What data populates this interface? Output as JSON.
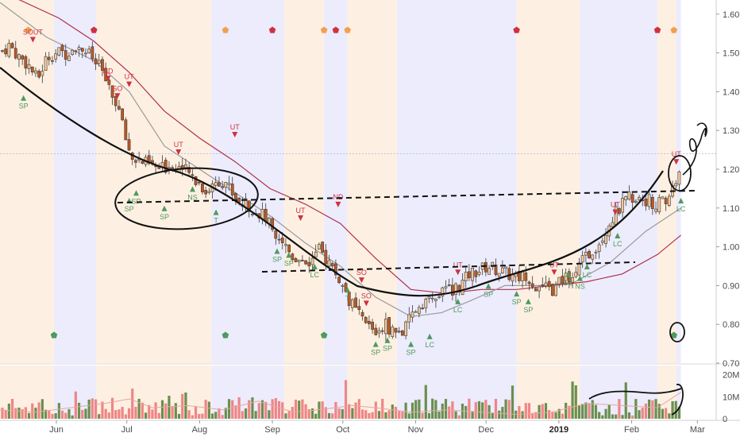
{
  "colors": {
    "up": "#6a8f4e",
    "down": "#f08585",
    "candle_up_fill": "#f5c89a",
    "candle_down_fill": "#c05820",
    "band_blue": "#ececfd",
    "band_orange": "#fdf0e2",
    "ma_slow": "#b0304a",
    "ma_fast": "#9a9a9a",
    "signal_green": "#4e9a5e",
    "signal_red": "#d03040",
    "signal_orange": "#f0a050",
    "drawing": "#111111"
  },
  "chart_data": {
    "type": "candlestick",
    "price_axis": {
      "ylim": [
        0.7,
        1.62
      ],
      "ticks": [
        "0.70",
        "0.80",
        "0.90",
        "1.00",
        "1.10",
        "1.20",
        "1.30",
        "1.40",
        "1.50",
        "1.60"
      ]
    },
    "volume_axis": {
      "ylim": [
        0,
        22
      ],
      "ticks": [
        "0",
        "10M",
        "20M"
      ]
    },
    "x_ticks": [
      {
        "label": "Jun",
        "day": 14,
        "bold": false
      },
      {
        "label": "Jul",
        "day": 44,
        "bold": false
      },
      {
        "label": "Aug",
        "day": 75,
        "bold": false
      },
      {
        "label": "Sep",
        "day": 106,
        "bold": false
      },
      {
        "label": "Oct",
        "day": 136,
        "bold": false
      },
      {
        "label": "Nov",
        "day": 167,
        "bold": false
      },
      {
        "label": "Dec",
        "day": 197,
        "bold": false
      },
      {
        "label": "2019",
        "day": 228,
        "bold": true
      },
      {
        "label": "Feb",
        "day": 259,
        "bold": false
      },
      {
        "label": "Mar",
        "day": 287,
        "bold": false
      }
    ],
    "x_domain_days": [
      -10,
      295
    ],
    "bands": [
      {
        "from": -10,
        "to": 13,
        "color": "orange"
      },
      {
        "from": 13,
        "to": 31,
        "color": "blue"
      },
      {
        "from": 31,
        "to": 80,
        "color": "orange"
      },
      {
        "from": 80,
        "to": 111,
        "color": "blue"
      },
      {
        "from": 111,
        "to": 128,
        "color": "orange"
      },
      {
        "from": 128,
        "to": 138,
        "color": "blue"
      },
      {
        "from": 138,
        "to": 159,
        "color": "orange"
      },
      {
        "from": 159,
        "to": 210,
        "color": "blue"
      },
      {
        "from": 210,
        "to": 237,
        "color": "orange"
      },
      {
        "from": 237,
        "to": 270,
        "color": "blue"
      },
      {
        "from": 270,
        "to": 278,
        "color": "orange"
      },
      {
        "from": 278,
        "to": 280,
        "color": "blue"
      }
    ],
    "close_path": [
      [
        -10,
        1.5
      ],
      [
        -6,
        1.52
      ],
      [
        -2,
        1.49
      ],
      [
        2,
        1.47
      ],
      [
        6,
        1.43
      ],
      [
        10,
        1.49
      ],
      [
        14,
        1.5
      ],
      [
        18,
        1.5
      ],
      [
        22,
        1.52
      ],
      [
        26,
        1.51
      ],
      [
        30,
        1.48
      ],
      [
        34,
        1.45
      ],
      [
        37,
        1.39
      ],
      [
        40,
        1.37
      ],
      [
        43,
        1.29
      ],
      [
        46,
        1.23
      ],
      [
        50,
        1.22
      ],
      [
        54,
        1.21
      ],
      [
        58,
        1.2
      ],
      [
        62,
        1.21
      ],
      [
        66,
        1.21
      ],
      [
        70,
        1.19
      ],
      [
        74,
        1.17
      ],
      [
        78,
        1.14
      ],
      [
        82,
        1.17
      ],
      [
        86,
        1.17
      ],
      [
        90,
        1.13
      ],
      [
        94,
        1.11
      ],
      [
        98,
        1.1
      ],
      [
        102,
        1.08
      ],
      [
        106,
        1.05
      ],
      [
        110,
        1.02
      ],
      [
        114,
        0.98
      ],
      [
        118,
        0.97
      ],
      [
        122,
        0.96
      ],
      [
        126,
        0.99
      ],
      [
        130,
        0.96
      ],
      [
        134,
        0.92
      ],
      [
        138,
        0.87
      ],
      [
        142,
        0.83
      ],
      [
        146,
        0.8
      ],
      [
        150,
        0.78
      ],
      [
        154,
        0.8
      ],
      [
        158,
        0.78
      ],
      [
        162,
        0.78
      ],
      [
        166,
        0.83
      ],
      [
        170,
        0.86
      ],
      [
        174,
        0.86
      ],
      [
        178,
        0.88
      ],
      [
        182,
        0.89
      ],
      [
        186,
        0.9
      ],
      [
        190,
        0.93
      ],
      [
        194,
        0.94
      ],
      [
        198,
        0.95
      ],
      [
        202,
        0.94
      ],
      [
        206,
        0.93
      ],
      [
        210,
        0.92
      ],
      [
        214,
        0.93
      ],
      [
        218,
        0.9
      ],
      [
        222,
        0.89
      ],
      [
        226,
        0.89
      ],
      [
        230,
        0.92
      ],
      [
        234,
        0.93
      ],
      [
        238,
        0.96
      ],
      [
        242,
        0.99
      ],
      [
        246,
        1.02
      ],
      [
        250,
        1.07
      ],
      [
        254,
        1.1
      ],
      [
        258,
        1.13
      ],
      [
        262,
        1.13
      ],
      [
        266,
        1.12
      ],
      [
        270,
        1.11
      ],
      [
        274,
        1.12
      ],
      [
        277,
        1.16
      ],
      [
        280,
        1.19
      ]
    ],
    "ma_fast_path": [
      [
        -10,
        1.63
      ],
      [
        10,
        1.54
      ],
      [
        30,
        1.48
      ],
      [
        45,
        1.4
      ],
      [
        60,
        1.26
      ],
      [
        75,
        1.2
      ],
      [
        90,
        1.14
      ],
      [
        105,
        1.08
      ],
      [
        120,
        1.01
      ],
      [
        135,
        0.95
      ],
      [
        150,
        0.87
      ],
      [
        165,
        0.82
      ],
      [
        178,
        0.83
      ],
      [
        190,
        0.86
      ],
      [
        205,
        0.9
      ],
      [
        220,
        0.9
      ],
      [
        235,
        0.91
      ],
      [
        250,
        0.96
      ],
      [
        265,
        1.04
      ],
      [
        280,
        1.1
      ]
    ],
    "ma_slow_path": [
      [
        -10,
        1.66
      ],
      [
        15,
        1.59
      ],
      [
        30,
        1.53
      ],
      [
        45,
        1.45
      ],
      [
        60,
        1.35
      ],
      [
        75,
        1.28
      ],
      [
        90,
        1.22
      ],
      [
        105,
        1.15
      ],
      [
        120,
        1.11
      ],
      [
        135,
        1.06
      ],
      [
        150,
        0.97
      ],
      [
        165,
        0.89
      ],
      [
        180,
        0.88
      ],
      [
        195,
        0.89
      ],
      [
        210,
        0.89
      ],
      [
        225,
        0.9
      ],
      [
        240,
        0.91
      ],
      [
        255,
        0.93
      ],
      [
        270,
        0.98
      ],
      [
        280,
        1.03
      ]
    ],
    "volume_profile": [
      [
        -10,
        4
      ],
      [
        5,
        3
      ],
      [
        20,
        5
      ],
      [
        35,
        7
      ],
      [
        45,
        9
      ],
      [
        55,
        5
      ],
      [
        70,
        6
      ],
      [
        85,
        4
      ],
      [
        100,
        8
      ],
      [
        115,
        3
      ],
      [
        125,
        4
      ],
      [
        140,
        6
      ],
      [
        150,
        5
      ],
      [
        165,
        3
      ],
      [
        180,
        4
      ],
      [
        195,
        3
      ],
      [
        210,
        2
      ],
      [
        225,
        3
      ],
      [
        240,
        7
      ],
      [
        255,
        6
      ],
      [
        270,
        5
      ],
      [
        280,
        12
      ]
    ],
    "signals_green": [
      {
        "day": 0,
        "price": 1.385,
        "label": "SP"
      },
      {
        "day": 45,
        "price": 1.12,
        "label": "SP"
      },
      {
        "day": 48,
        "price": 1.14,
        "label": "SP"
      },
      {
        "day": 60,
        "price": 1.1,
        "label": "SP"
      },
      {
        "day": 72,
        "price": 1.15,
        "label": "NS"
      },
      {
        "day": 82,
        "price": 1.09,
        "label": "T"
      },
      {
        "day": 108,
        "price": 0.99,
        "label": "SP"
      },
      {
        "day": 113,
        "price": 0.98,
        "label": "SP"
      },
      {
        "day": 124,
        "price": 0.95,
        "label": "LC"
      },
      {
        "day": 138,
        "price": 0.89,
        "label": "T"
      },
      {
        "day": 150,
        "price": 0.75,
        "label": "SP"
      },
      {
        "day": 155,
        "price": 0.76,
        "label": "SP"
      },
      {
        "day": 165,
        "price": 0.75,
        "label": "SP"
      },
      {
        "day": 173,
        "price": 0.77,
        "label": "LC"
      },
      {
        "day": 185,
        "price": 0.86,
        "label": "LC"
      },
      {
        "day": 198,
        "price": 0.9,
        "label": "SP"
      },
      {
        "day": 210,
        "price": 0.88,
        "label": "SP"
      },
      {
        "day": 215,
        "price": 0.86,
        "label": "SP"
      },
      {
        "day": 232,
        "price": 0.93,
        "label": "LC"
      },
      {
        "day": 237,
        "price": 0.92,
        "label": "NS"
      },
      {
        "day": 240,
        "price": 0.95,
        "label": "LC"
      },
      {
        "day": 253,
        "price": 1.03,
        "label": "LC"
      },
      {
        "day": 280,
        "price": 1.12,
        "label": "LC"
      }
    ],
    "signals_red": [
      {
        "day": 4,
        "price": 1.535,
        "label": "SOUT"
      },
      {
        "day": 36,
        "price": 1.435,
        "label": "ND"
      },
      {
        "day": 40,
        "price": 1.39,
        "label": "SO"
      },
      {
        "day": 45,
        "price": 1.42,
        "label": "UT"
      },
      {
        "day": 66,
        "price": 1.245,
        "label": "UT"
      },
      {
        "day": 90,
        "price": 1.29,
        "label": "UT"
      },
      {
        "day": 118,
        "price": 1.075,
        "label": "UT"
      },
      {
        "day": 134,
        "price": 1.11,
        "label": "ND"
      },
      {
        "day": 144,
        "price": 0.915,
        "label": "SO"
      },
      {
        "day": 146,
        "price": 0.855,
        "label": "SO"
      },
      {
        "day": 185,
        "price": 0.935,
        "label": "UT"
      },
      {
        "day": 226,
        "price": 0.935,
        "label": "UT"
      },
      {
        "day": 252,
        "price": 1.09,
        "label": "UT"
      },
      {
        "day": 278,
        "price": 1.22,
        "label": "UT"
      }
    ],
    "marker_days_top_orange": [
      2,
      86,
      128,
      138,
      277
    ],
    "marker_days_top_red": [
      30,
      106,
      133,
      210,
      270
    ],
    "marker_days_bottom_green": [
      13,
      86,
      128,
      277
    ]
  }
}
